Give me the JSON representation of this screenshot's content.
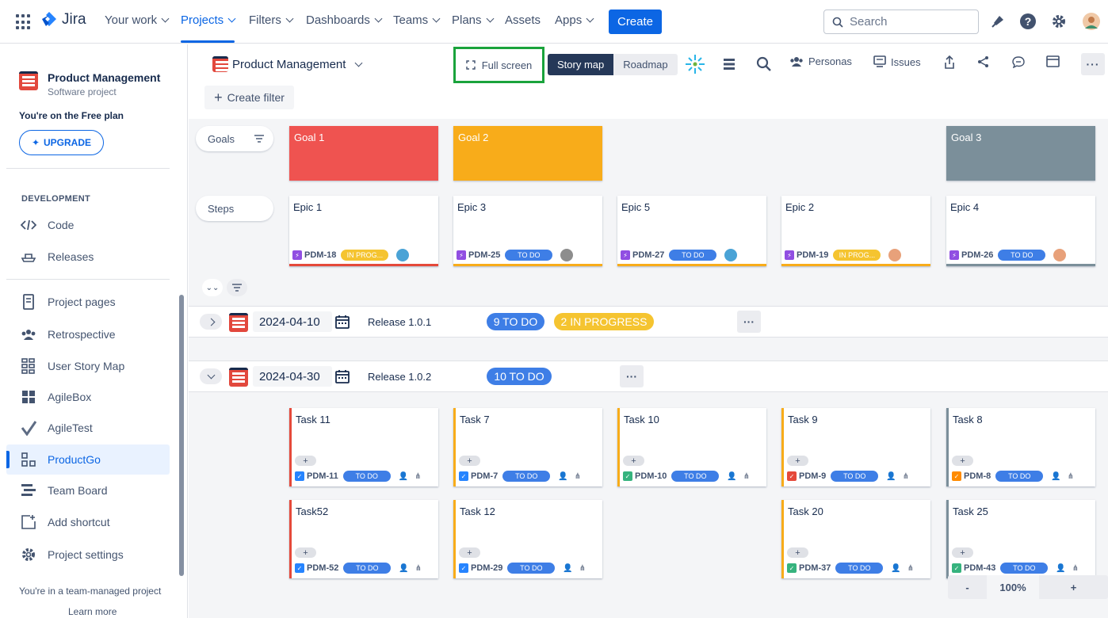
{
  "topnav": {
    "logo": "Jira",
    "items": [
      "Your work",
      "Projects",
      "Filters",
      "Dashboards",
      "Teams",
      "Plans",
      "Assets",
      "Apps"
    ],
    "create": "Create",
    "search_placeholder": "Search"
  },
  "sidebar": {
    "project_title": "Product Management",
    "project_sub": "Software project",
    "free_plan": "You're on the Free plan",
    "upgrade": "UPGRADE",
    "dev_heading": "DEVELOPMENT",
    "dev_items": [
      "Code",
      "Releases"
    ],
    "items": [
      "Project pages",
      "Retrospective",
      "User Story Map",
      "AgileBox",
      "AgileTest",
      "ProductGo",
      "Team Board",
      "Add shortcut",
      "Project settings"
    ],
    "team_managed": "You're in a team-managed project",
    "learn_more": "Learn more"
  },
  "toolbar": {
    "project": "Product Management",
    "fullscreen": "Full screen",
    "story_map": "Story map",
    "roadmap": "Roadmap",
    "personas": "Personas",
    "issues": "Issues",
    "create_filter": "Create filter"
  },
  "board": {
    "goals_label": "Goals",
    "steps_label": "Steps",
    "goals": [
      {
        "title": "Goal 1",
        "color": "#ef5350"
      },
      {
        "title": "Goal 2",
        "color": "#f8ac1a"
      },
      {
        "title": "Goal 3",
        "color": "#7b8f9a"
      }
    ],
    "epics": [
      {
        "title": "Epic 1",
        "key": "PDM-18",
        "status": "IN PROG...",
        "bar": "#e5493a"
      },
      {
        "title": "Epic 3",
        "key": "PDM-25",
        "status": "TO DO",
        "bar": "#f8ac1a"
      },
      {
        "title": "Epic 5",
        "key": "PDM-27",
        "status": "TO DO",
        "bar": "#f8ac1a"
      },
      {
        "title": "Epic 2",
        "key": "PDM-19",
        "status": "IN PROG...",
        "bar": "#f8ac1a"
      },
      {
        "title": "Epic 4",
        "key": "PDM-26",
        "status": "TO DO",
        "bar": "#7b8f9a"
      }
    ],
    "releases": [
      {
        "date": "2024-04-10",
        "name": "Release 1.0.1",
        "todo": "9 TO DO",
        "progress": "2 IN PROGRESS"
      },
      {
        "date": "2024-04-30",
        "name": "Release 1.0.2",
        "todo": "10 TO DO"
      }
    ],
    "tasks_row1": [
      {
        "title": "Task 11",
        "key": "PDM-11",
        "status": "TO DO"
      },
      {
        "title": "Task 7",
        "key": "PDM-7",
        "status": "TO DO"
      },
      {
        "title": "Task 10",
        "key": "PDM-10",
        "status": "TO DO"
      },
      {
        "title": "Task 9",
        "key": "PDM-9",
        "status": "TO DO"
      },
      {
        "title": "Task 8",
        "key": "PDM-8",
        "status": "TO DO"
      }
    ],
    "tasks_row2": [
      {
        "title": "Task52",
        "key": "PDM-52",
        "status": "TO DO"
      },
      {
        "title": "Task 12",
        "key": "PDM-29",
        "status": "TO DO"
      },
      {
        "title": "Task 20",
        "key": "PDM-37",
        "status": "TO DO"
      },
      {
        "title": "Task 25",
        "key": "PDM-43",
        "status": "TO DO"
      }
    ],
    "add_label": "+",
    "zoom": {
      "minus": "-",
      "value": "100%",
      "plus": "+"
    }
  }
}
